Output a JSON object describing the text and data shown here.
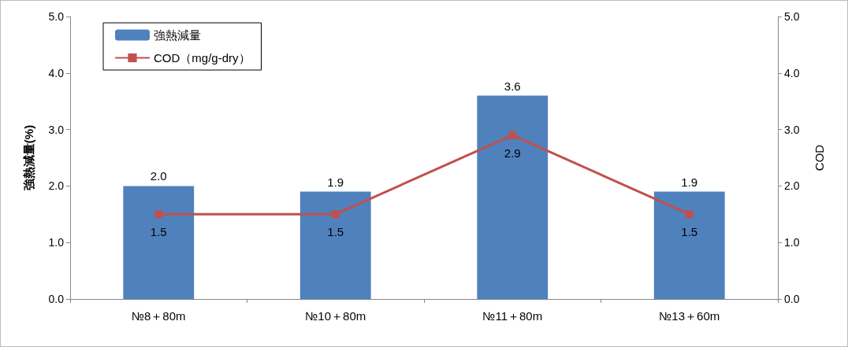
{
  "chart_data": {
    "type": "bar",
    "categories": [
      "№8＋80m",
      "№10＋80m",
      "№11＋80m",
      "№13＋60m"
    ],
    "ylabel": "強熱減量(%)",
    "y2label": "COD",
    "ylim": [
      0,
      5
    ],
    "yticks": [
      {
        "value": 0,
        "label": "0.0"
      },
      {
        "value": 1,
        "label": "1.0"
      },
      {
        "value": 2,
        "label": "2.0"
      },
      {
        "value": 3,
        "label": "3.0"
      },
      {
        "value": 4,
        "label": "4.0"
      },
      {
        "value": 5,
        "label": "5.0"
      }
    ],
    "y2lim": [
      0,
      5
    ],
    "y2ticks": [
      {
        "value": 0,
        "label": "0.0"
      },
      {
        "value": 1,
        "label": "1.0"
      },
      {
        "value": 2,
        "label": "2.0"
      },
      {
        "value": 3,
        "label": "3.0"
      },
      {
        "value": 4,
        "label": "4.0"
      },
      {
        "value": 5,
        "label": "5.0"
      }
    ],
    "series": [
      {
        "name": "強熱減量",
        "color": "#4f81bd",
        "values": [
          2.0,
          1.9,
          3.6,
          1.9
        ],
        "value_labels": [
          "2.0",
          "1.9",
          "3.6",
          "1.9"
        ]
      },
      {
        "name": "COD（mg/g-dry）",
        "type": "line",
        "axis": "y2",
        "color": "#c0504d",
        "marker": "square",
        "values": [
          1.5,
          1.5,
          2.9,
          1.5
        ],
        "value_labels": [
          "1.5",
          "1.5",
          "2.9",
          "1.5"
        ]
      }
    ],
    "legend": "top left",
    "grid": false
  }
}
